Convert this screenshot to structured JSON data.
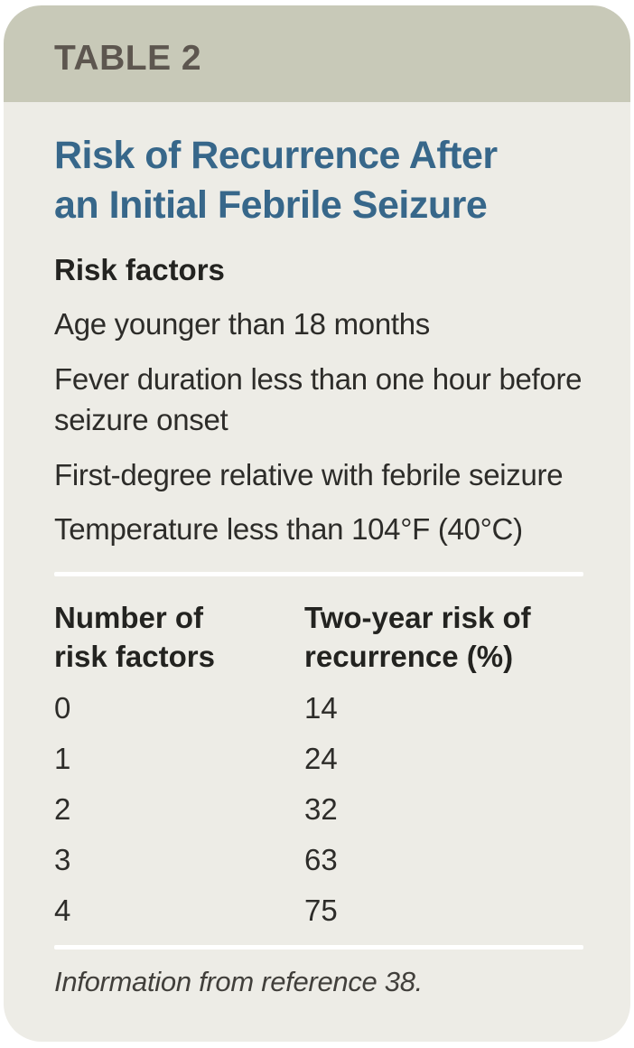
{
  "header": {
    "table_label": "TABLE 2"
  },
  "title": {
    "line1": "Risk of Recurrence After",
    "line2": "an Initial Febrile Seizure",
    "full": "Risk of Recurrence After an Initial Febrile Seizure"
  },
  "risk_factors": {
    "heading": "Risk factors",
    "items": [
      "Age younger than 18 months",
      "Fever duration less than one hour before seizure onset",
      "First-degree relative with febrile seizure",
      "Temperature less than 104°F (40°C)"
    ]
  },
  "table": {
    "columns": [
      "Number of risk factors",
      "Two-year risk of recurrence (%)"
    ],
    "rows": [
      {
        "factors": "0",
        "risk": "14"
      },
      {
        "factors": "1",
        "risk": "24"
      },
      {
        "factors": "2",
        "risk": "32"
      },
      {
        "factors": "3",
        "risk": "63"
      },
      {
        "factors": "4",
        "risk": "75"
      }
    ]
  },
  "footnote": "Information from reference 38.",
  "colors": {
    "header_band": "#c8c9b8",
    "body_background": "#edece6",
    "title_text": "#37678a",
    "table_label_text": "#5d564f",
    "body_text": "#2d2c29",
    "divider": "#ffffff"
  }
}
